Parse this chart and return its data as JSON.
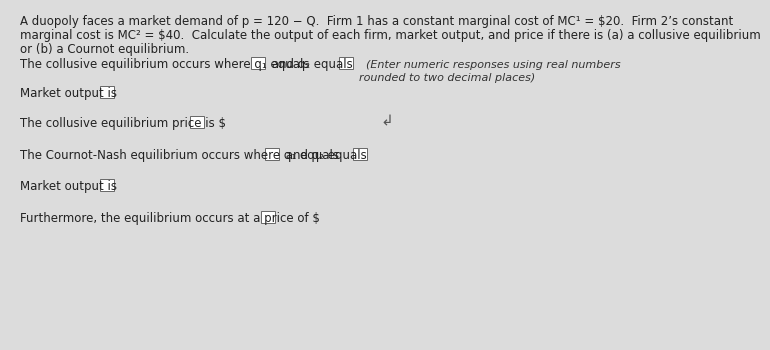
{
  "bg_color": "#dcdcdc",
  "fs_header": 8.5,
  "fs_body": 8.5,
  "fs_italic": 8.0,
  "header": [
    "A duopoly faces a market demand of p = 120 − Q.  Firm 1 has a constant marginal cost of MC¹ = $20.  Firm 2’s constant",
    "marginal cost is MC² = $40.  Calculate the output of each firm, market output, and price if there is (a) a collusive equilibrium",
    "or (b) a Cournot equilibrium."
  ],
  "line1_a": "The collusive equilibrium occurs where q₁ equals ",
  "line1_b": " and q₂ equals ",
  "line1_c": "  (Enter numeric responses using real numbers",
  "line1_d": "rounded to two decimal places)",
  "line2": "Market output is ",
  "line3": "The collusive equilibrium price is $",
  "line4_a": "The Cournot-Nash equilibrium occurs where q₁ equals ",
  "line4_b": " and q₂ equals ",
  "line5": "Market output is ",
  "line6": "Furthermore, the equilibrium occurs at a price of $"
}
